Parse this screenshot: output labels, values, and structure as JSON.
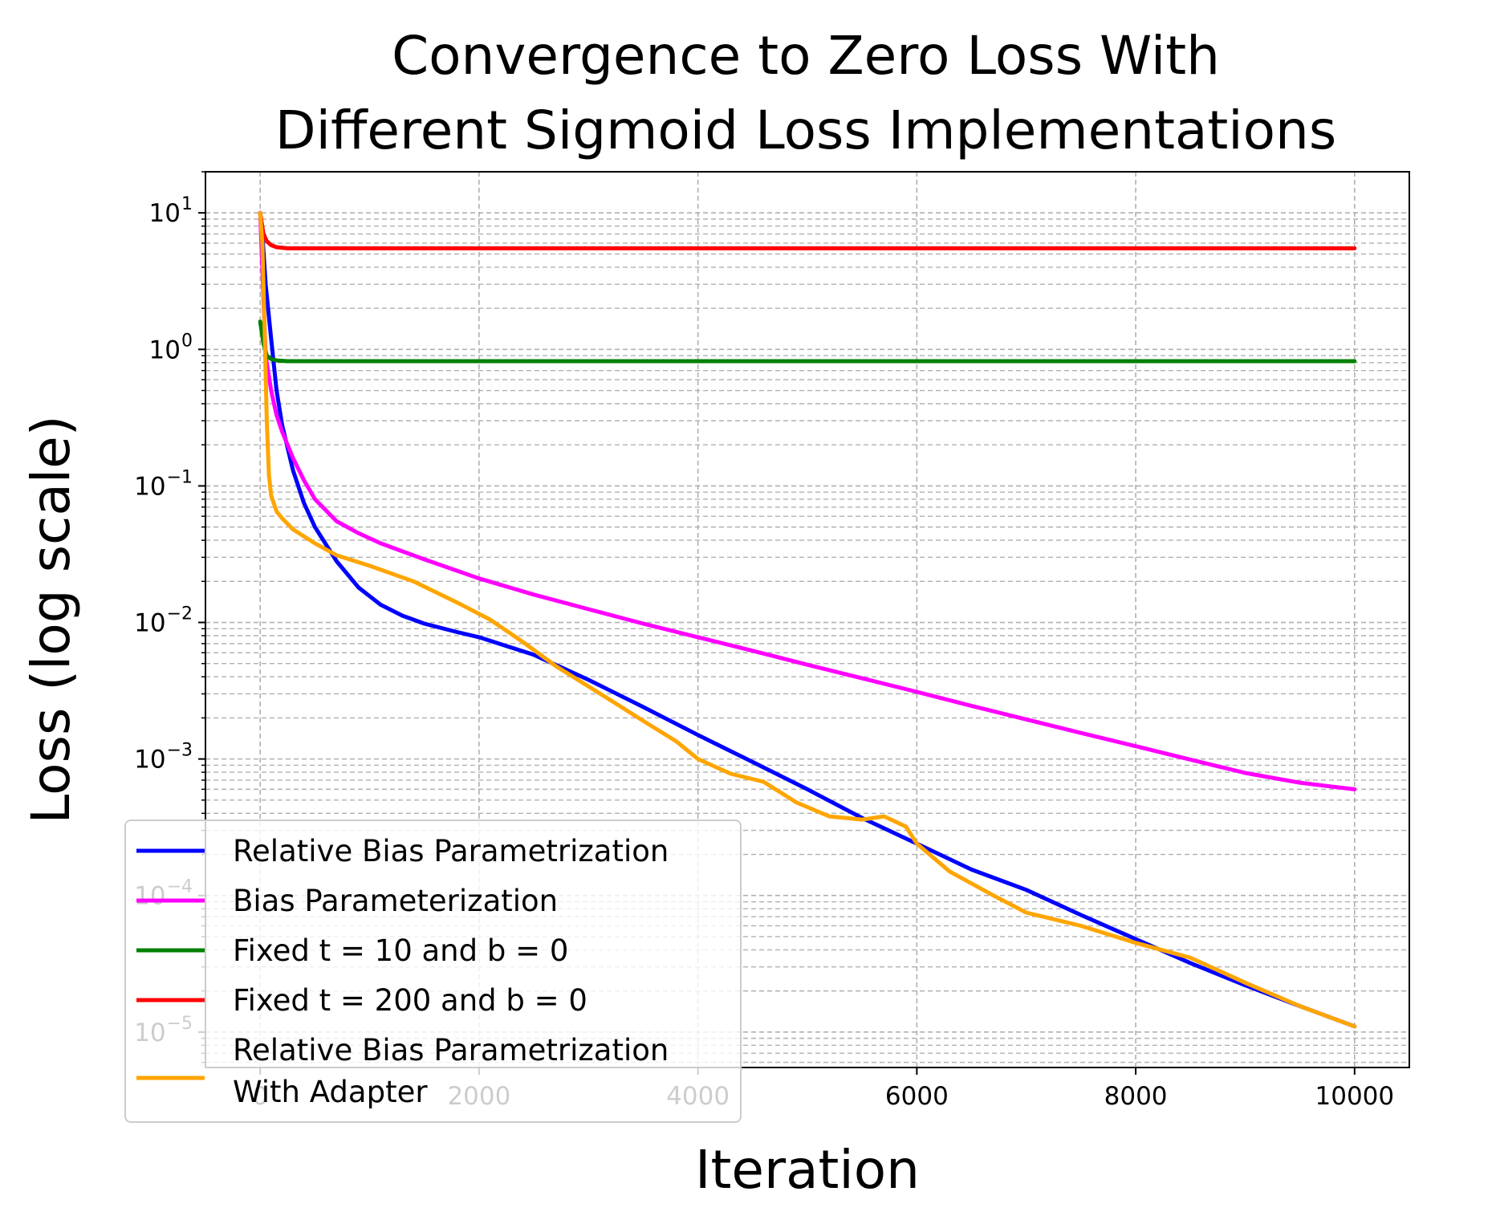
{
  "chart_data": {
    "type": "line",
    "title_lines": [
      "Convergence to Zero Loss With",
      "Different Sigmoid Loss Implementations"
    ],
    "xlabel": "Iteration",
    "ylabel": "Loss (log scale)",
    "yscale": "log",
    "xlim": [
      -500,
      10500
    ],
    "ylim": [
      5.5e-06,
      20
    ],
    "grid": true,
    "legend_position": "lower-left",
    "x_ticks": [
      {
        "value": 0,
        "label": "0"
      },
      {
        "value": 2000,
        "label": "2000"
      },
      {
        "value": 4000,
        "label": "4000"
      },
      {
        "value": 6000,
        "label": "6000"
      },
      {
        "value": 8000,
        "label": "8000"
      },
      {
        "value": 10000,
        "label": "10000"
      }
    ],
    "y_ticks": [
      {
        "value": 10,
        "base": "10",
        "exp": "1"
      },
      {
        "value": 1,
        "base": "10",
        "exp": "0"
      },
      {
        "value": 0.1,
        "base": "10",
        "exp": "−1"
      },
      {
        "value": 0.01,
        "base": "10",
        "exp": "−2"
      },
      {
        "value": 0.001,
        "base": "10",
        "exp": "−3"
      },
      {
        "value": 0.0001,
        "base": "10",
        "exp": "−4"
      },
      {
        "value": 1e-05,
        "base": "10",
        "exp": "−5"
      }
    ],
    "series": [
      {
        "name": "Relative Bias Parametrization",
        "legend_lines": [
          "Relative Bias Parametrization"
        ],
        "color": "#0000ff",
        "x": [
          0,
          25,
          50,
          100,
          150,
          200,
          300,
          400,
          500,
          700,
          900,
          1100,
          1300,
          1500,
          1800,
          2000,
          2500,
          3000,
          3500,
          4000,
          4500,
          5000,
          5500,
          6000,
          6500,
          7000,
          7500,
          8000,
          8500,
          9000,
          9500,
          10000
        ],
        "y": [
          10,
          6,
          3,
          1.2,
          0.5,
          0.28,
          0.13,
          0.075,
          0.05,
          0.028,
          0.018,
          0.0135,
          0.0112,
          0.0098,
          0.0085,
          0.0078,
          0.0058,
          0.0038,
          0.0024,
          0.0015,
          0.00095,
          0.0006,
          0.00037,
          0.00024,
          0.000155,
          0.00011,
          7.2e-05,
          4.8e-05,
          3.2e-05,
          2.2e-05,
          1.55e-05,
          1.1e-05
        ]
      },
      {
        "name": "Bias Parameterization",
        "legend_lines": [
          "Bias Parameterization"
        ],
        "color": "#ff00ff",
        "x": [
          0,
          25,
          50,
          100,
          150,
          200,
          300,
          400,
          500,
          700,
          900,
          1100,
          1500,
          2000,
          2500,
          3000,
          3500,
          4000,
          4500,
          5000,
          5500,
          6000,
          6500,
          7000,
          7500,
          8000,
          8500,
          9000,
          9500,
          10000
        ],
        "y": [
          10,
          3,
          0.9,
          0.5,
          0.33,
          0.25,
          0.16,
          0.11,
          0.08,
          0.055,
          0.045,
          0.038,
          0.029,
          0.021,
          0.016,
          0.0125,
          0.0098,
          0.0078,
          0.0062,
          0.0049,
          0.0039,
          0.0031,
          0.00245,
          0.00195,
          0.00155,
          0.00124,
          0.00099,
          0.00079,
          0.00067,
          0.0006
        ]
      },
      {
        "name": "Fixed t = 10 and b = 0",
        "legend_lines": [
          "Fixed t = 10 and b = 0"
        ],
        "color": "#008000",
        "x": [
          0,
          30,
          60,
          100,
          150,
          250,
          10000
        ],
        "y": [
          1.6,
          1.1,
          0.9,
          0.85,
          0.83,
          0.82,
          0.82
        ]
      },
      {
        "name": "Fixed t = 200 and b = 0",
        "legend_lines": [
          "Fixed t = 200 and b = 0"
        ],
        "color": "#ff0000",
        "x": [
          0,
          30,
          60,
          100,
          150,
          250,
          10000
        ],
        "y": [
          10,
          7,
          6.2,
          5.8,
          5.6,
          5.5,
          5.5
        ]
      },
      {
        "name": "Relative Bias Parametrization With Adapter",
        "legend_lines": [
          "Relative Bias Parametrization",
          "With Adapter"
        ],
        "color": "#ffa500",
        "x": [
          0,
          20,
          40,
          60,
          80,
          100,
          150,
          200,
          300,
          500,
          700,
          1000,
          1400,
          1800,
          2100,
          2400,
          2700,
          3000,
          3200,
          3500,
          3800,
          4000,
          4300,
          4600,
          4900,
          5200,
          5500,
          5700,
          5900,
          6000,
          6300,
          6700,
          7000,
          7500,
          8000,
          8500,
          9000,
          9500,
          10000
        ],
        "y": [
          10,
          6,
          1.5,
          0.3,
          0.12,
          0.085,
          0.065,
          0.058,
          0.048,
          0.038,
          0.031,
          0.026,
          0.02,
          0.014,
          0.0105,
          0.0072,
          0.0048,
          0.0034,
          0.0027,
          0.0019,
          0.00135,
          0.001,
          0.00078,
          0.00068,
          0.00048,
          0.00038,
          0.00036,
          0.00038,
          0.00032,
          0.00024,
          0.00015,
          0.0001,
          7.5e-05,
          6e-05,
          4.5e-05,
          3.5e-05,
          2.3e-05,
          1.55e-05,
          1.1e-05
        ]
      }
    ]
  }
}
